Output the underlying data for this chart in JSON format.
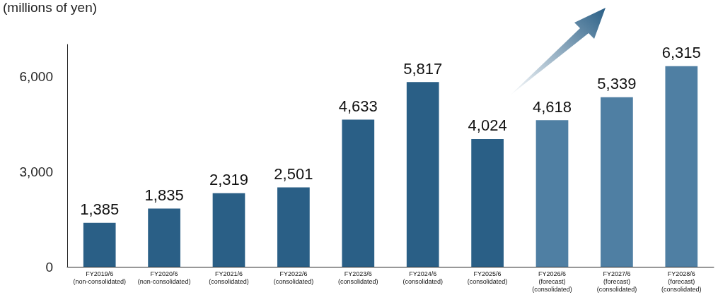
{
  "chart_data": {
    "type": "bar",
    "ylabel": "(millions of yen)",
    "categories": [
      "FY2019/6\n(non-consolidated)",
      "FY2020/6\n(non-consolidated)",
      "FY2021/6\n(consolidated)",
      "FY2022/6\n(consolidated)",
      "FY2023/6\n(consolidated)",
      "FY2024/6\n(consolidated)",
      "FY2025/6\n(consolidated)",
      "FY2026/6\n(forecast)\n(consolidated)",
      "FY2027/6\n(forecast)\n(consolidated)",
      "FY2028/6\n(forecast)\n(consolidated)"
    ],
    "values": [
      1385,
      1835,
      2319,
      2501,
      4633,
      5817,
      4024,
      4618,
      5339,
      6315
    ],
    "value_labels": [
      "1,385",
      "1,835",
      "2,319",
      "2,501",
      "4,633",
      "5,817",
      "4,024",
      "4,618",
      "5,339",
      "6,315"
    ],
    "colors": [
      "#2a5f86",
      "#2a5f86",
      "#2a5f86",
      "#2a5f86",
      "#2a5f86",
      "#2a5f86",
      "#2a5f86",
      "#4f7fa3",
      "#4f7fa3",
      "#4f7fa3"
    ],
    "ylim": [
      0,
      7000
    ],
    "yticks": [
      0,
      {
        "value": 3000,
        "label": "3,000"
      },
      {
        "value": 6000,
        "label": "6,000"
      }
    ],
    "grid": false
  }
}
